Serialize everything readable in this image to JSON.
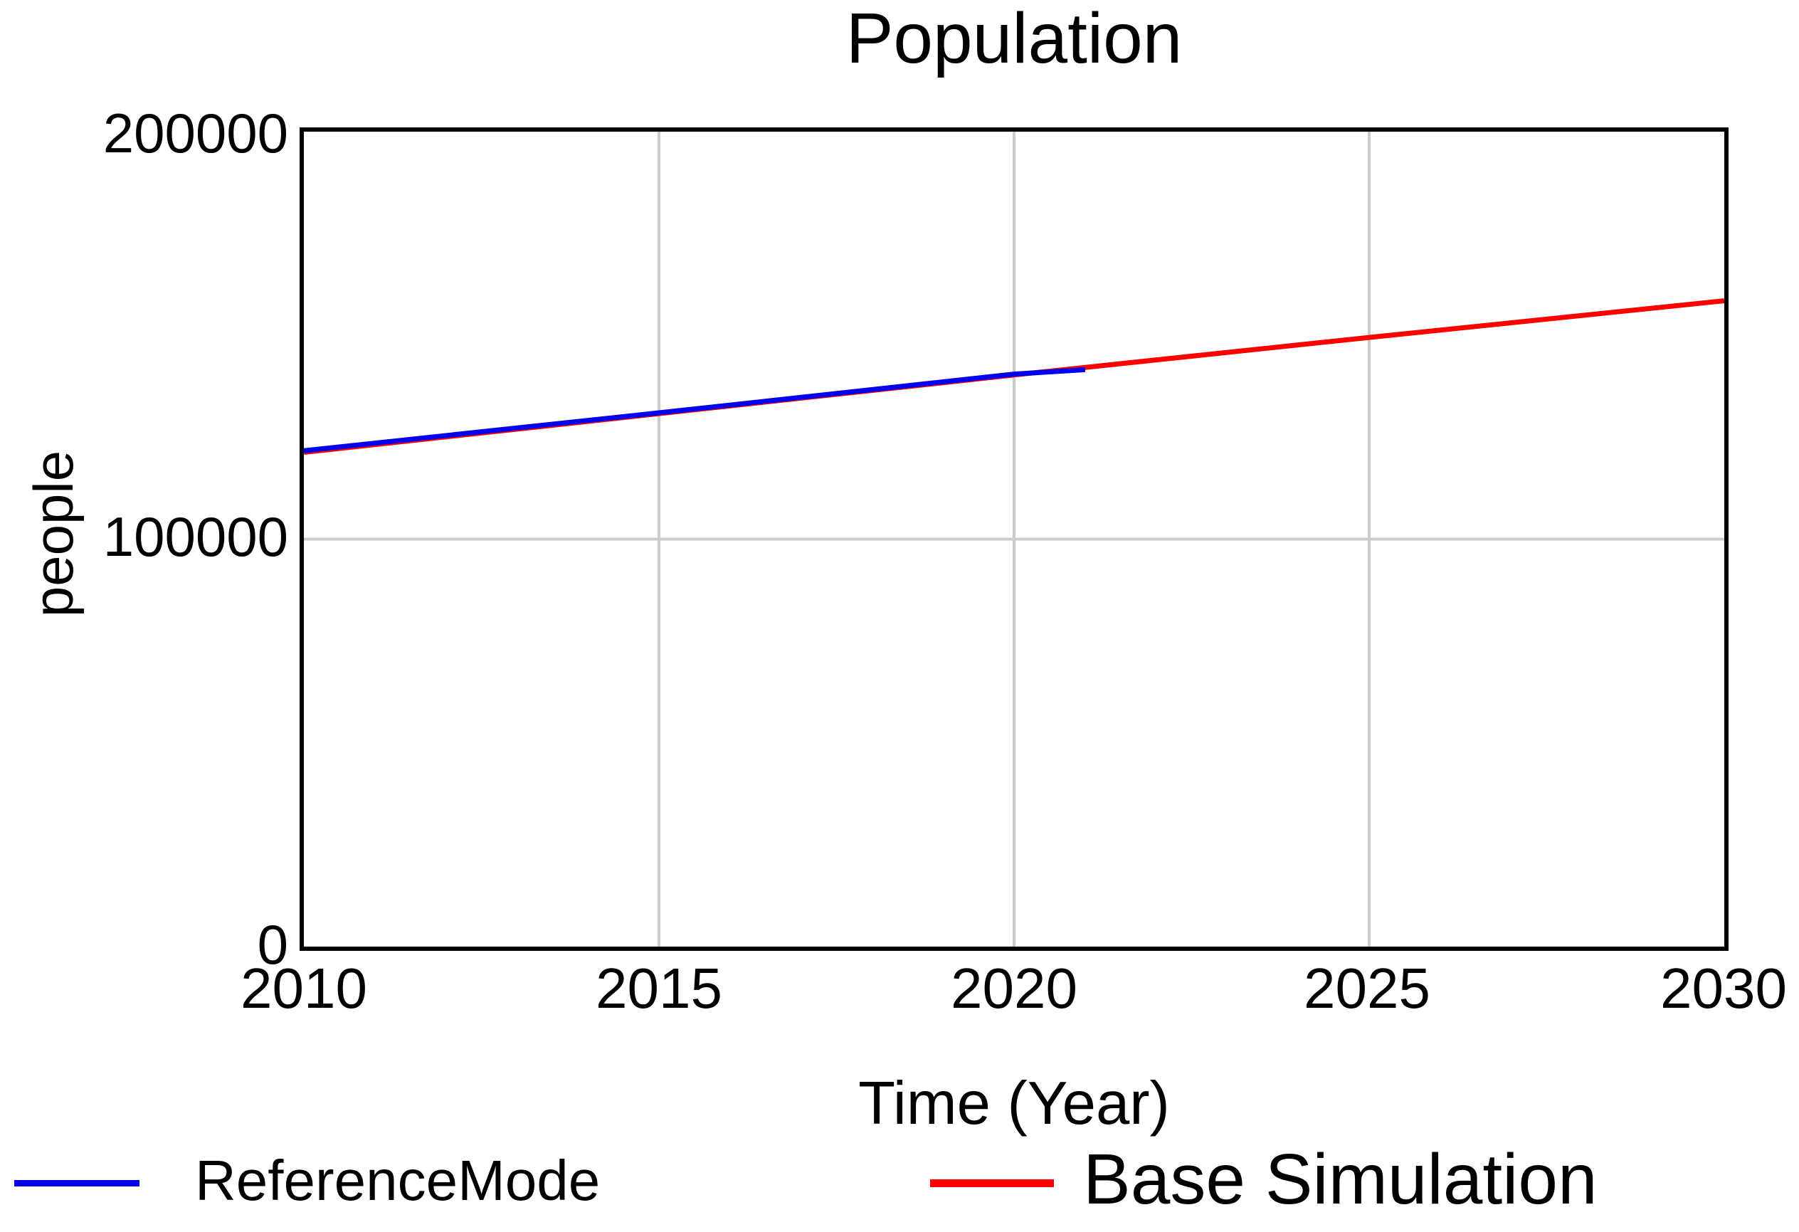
{
  "title": "Population",
  "chart_data": {
    "type": "line",
    "title": "Population",
    "xlabel": "Time (Year)",
    "ylabel": "people",
    "xlim": [
      2010,
      2030
    ],
    "ylim": [
      0,
      200000
    ],
    "x_ticks": [
      2010,
      2015,
      2020,
      2025,
      2030
    ],
    "x_tick_labels": [
      "2010",
      "2015",
      "2020",
      "2025",
      "2030"
    ],
    "y_ticks": [
      0,
      100000,
      200000
    ],
    "y_tick_labels": [
      "0",
      "100000",
      "200000"
    ],
    "grid": true,
    "grid_color": "#cccccc",
    "frame_color": "#000000",
    "legend_position": "bottom",
    "series": [
      {
        "name": "Base Simulation",
        "color": "#ff0000",
        "x": [
          2010,
          2015,
          2020,
          2025,
          2030
        ],
        "values": [
          121300,
          130800,
          140300,
          149500,
          158500
        ]
      },
      {
        "name": "ReferenceMode",
        "color": "#0000ee",
        "x": [
          2010,
          2015,
          2020,
          2021
        ],
        "values": [
          121700,
          131000,
          140500,
          141600
        ]
      }
    ]
  }
}
